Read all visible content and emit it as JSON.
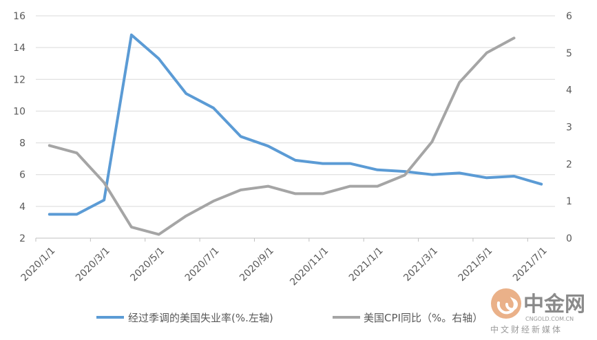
{
  "chart_data": {
    "type": "line",
    "x": [
      "2020/1/1",
      "2020/2/1",
      "2020/3/1",
      "2020/4/1",
      "2020/5/1",
      "2020/6/1",
      "2020/7/1",
      "2020/8/1",
      "2020/9/1",
      "2020/10/1",
      "2020/11/1",
      "2020/12/1",
      "2021/1/1",
      "2021/2/1",
      "2021/3/1",
      "2021/4/1",
      "2021/5/1",
      "2021/6/1",
      "2021/7/1"
    ],
    "x_tick_labels": [
      "2020/1/1",
      "2020/3/1",
      "2020/5/1",
      "2020/7/1",
      "2020/9/1",
      "2020/11/1",
      "2021/1/1",
      "2021/3/1",
      "2021/5/1",
      "2021/7/1"
    ],
    "y_left": {
      "ylim": [
        2,
        16
      ],
      "ticks": [
        "2",
        "4",
        "6",
        "8",
        "10",
        "12",
        "14",
        "16"
      ]
    },
    "y_right": {
      "ylim": [
        0,
        6
      ],
      "ticks": [
        "0",
        "1",
        "2",
        "3",
        "4",
        "5",
        "6"
      ]
    },
    "series": [
      {
        "name": "经过季调的美国失业率(%.左轴)",
        "axis": "left",
        "color": "#5b9bd5",
        "values": [
          3.5,
          3.5,
          4.4,
          14.8,
          13.3,
          11.1,
          10.2,
          8.4,
          7.8,
          6.9,
          6.7,
          6.7,
          6.3,
          6.2,
          6.0,
          6.1,
          5.8,
          5.9,
          5.4
        ]
      },
      {
        "name": "美国CPI同比（%。右轴）",
        "axis": "right",
        "color": "#a5a5a5",
        "values": [
          2.5,
          2.3,
          1.5,
          0.3,
          0.1,
          0.6,
          1.0,
          1.3,
          1.4,
          1.2,
          1.2,
          1.4,
          1.4,
          1.7,
          2.6,
          4.2,
          5.0,
          5.4,
          null
        ]
      }
    ],
    "legend": "bottom",
    "grid": "horizontal"
  },
  "watermark": {
    "brand": "中金网",
    "site": "CNGOLD.COM.CN",
    "tagline": "中文财经新媒体"
  }
}
